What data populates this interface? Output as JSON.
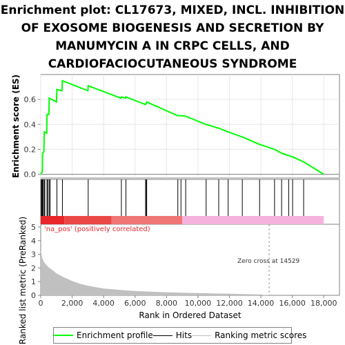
{
  "title_lines": [
    "Enrichment plot: CL17673, MIXED, INCL. INHIBITION",
    "OF EXOSOME BIOGENESIS AND SECRETION BY",
    "MANUMYCIN A IN CRPC CELLS, AND",
    "CARDIOFACIOCUTANEOUS SYNDROME"
  ],
  "chart_data": {
    "type": "line",
    "xlabel": "Rank in Ordered Dataset",
    "xlim": [
      0,
      19000
    ],
    "x_ticks": [
      0,
      2000,
      4000,
      6000,
      8000,
      10000,
      12000,
      14000,
      16000,
      18000
    ],
    "x_tick_labels": [
      "0",
      "2,000",
      "4,000",
      "6,000",
      "8,000",
      "10,000",
      "12,000",
      "14,000",
      "16,000",
      "18,000"
    ],
    "es_panel": {
      "ylabel": "Enrichment score (ES)",
      "ylim": [
        -0.03,
        0.8
      ],
      "y_ticks": [
        0.0,
        0.2,
        0.4,
        0.6
      ],
      "y_tick_labels": [
        "0.0",
        "0.2",
        "0.4",
        "0.6"
      ],
      "series": [
        {
          "name": "Enrichment profile",
          "color": "#00ff00",
          "points": [
            [
              0,
              0.0
            ],
            [
              100,
              0.02
            ],
            [
              120,
              0.17
            ],
            [
              200,
              0.18
            ],
            [
              230,
              0.34
            ],
            [
              380,
              0.33
            ],
            [
              400,
              0.48
            ],
            [
              520,
              0.48
            ],
            [
              540,
              0.61
            ],
            [
              1000,
              0.58
            ],
            [
              1030,
              0.68
            ],
            [
              1350,
              0.67
            ],
            [
              1380,
              0.75
            ],
            [
              3000,
              0.67
            ],
            [
              3020,
              0.71
            ],
            [
              5100,
              0.61
            ],
            [
              5130,
              0.62
            ],
            [
              5400,
              0.61
            ],
            [
              5420,
              0.62
            ],
            [
              6650,
              0.56
            ],
            [
              6670,
              0.56
            ],
            [
              6700,
              0.57
            ],
            [
              6720,
              0.57
            ],
            [
              6740,
              0.58
            ],
            [
              8700,
              0.47
            ],
            [
              8720,
              0.47
            ],
            [
              8900,
              0.47
            ],
            [
              8920,
              0.47
            ],
            [
              9200,
              0.465
            ],
            [
              9220,
              0.465
            ],
            [
              10500,
              0.4
            ],
            [
              10520,
              0.4
            ],
            [
              11300,
              0.37
            ],
            [
              11320,
              0.37
            ],
            [
              11900,
              0.34
            ],
            [
              11920,
              0.34
            ],
            [
              12800,
              0.3
            ],
            [
              12820,
              0.3
            ],
            [
              13900,
              0.24
            ],
            [
              13920,
              0.24
            ],
            [
              14850,
              0.2
            ],
            [
              14870,
              0.2
            ],
            [
              15300,
              0.17
            ],
            [
              15320,
              0.17
            ],
            [
              15750,
              0.15
            ],
            [
              15770,
              0.15
            ],
            [
              16000,
              0.14
            ],
            [
              16020,
              0.14
            ],
            [
              16700,
              0.1
            ],
            [
              16720,
              0.1
            ],
            [
              18000,
              0.0
            ]
          ]
        }
      ]
    },
    "hits": [
      40,
      80,
      120,
      160,
      230,
      260,
      400,
      450,
      540,
      600,
      1030,
      1380,
      3020,
      5130,
      5420,
      6670,
      6720,
      6740,
      8720,
      8920,
      9220,
      10520,
      11320,
      11920,
      12820,
      13920,
      14870,
      15320,
      15770,
      16020,
      16720
    ],
    "ranking_panel": {
      "ylabel": "Ranked list metric (PreRanked)",
      "ylim": [
        0,
        5.2
      ],
      "y_ticks": [
        0,
        1,
        2,
        3,
        4,
        5
      ],
      "y_tick_labels": [
        "0",
        "1",
        "2",
        "3",
        "4",
        "5"
      ],
      "series": [
        {
          "name": "Ranking metric scores",
          "color": "#c0c0c0",
          "points": [
            [
              0,
              3.3
            ],
            [
              50,
              3.0
            ],
            [
              100,
              2.7
            ],
            [
              200,
              2.45
            ],
            [
              300,
              2.3
            ],
            [
              500,
              2.05
            ],
            [
              800,
              1.8
            ],
            [
              1000,
              1.6
            ],
            [
              1500,
              1.3
            ],
            [
              2000,
              1.05
            ],
            [
              2500,
              0.85
            ],
            [
              3000,
              0.7
            ],
            [
              3500,
              0.6
            ],
            [
              4000,
              0.5
            ],
            [
              4500,
              0.45
            ],
            [
              5000,
              0.4
            ],
            [
              6000,
              0.32
            ],
            [
              7000,
              0.27
            ],
            [
              8000,
              0.22
            ],
            [
              9000,
              0.19
            ],
            [
              10000,
              0.16
            ],
            [
              11000,
              0.14
            ],
            [
              12000,
              0.12
            ],
            [
              13000,
              0.09
            ],
            [
              14000,
              0.06
            ],
            [
              14529,
              0.0
            ],
            [
              18000,
              0.0
            ]
          ]
        }
      ],
      "zero_cross": 14529,
      "zero_cross_label": "Zero cross at 14529",
      "pos_label": "'na_pos' (positively correlated)"
    },
    "legend": [
      "Enrichment profile",
      "Hits",
      "Ranking metric scores"
    ]
  },
  "colors": {
    "profile": "#00ff00",
    "pos_label": "#e8262b",
    "zero_line": "#909090",
    "heat_red_strong": "#e8262b",
    "heat_red_mid": "#f07575",
    "heat_pink": "#f5b2dc"
  }
}
